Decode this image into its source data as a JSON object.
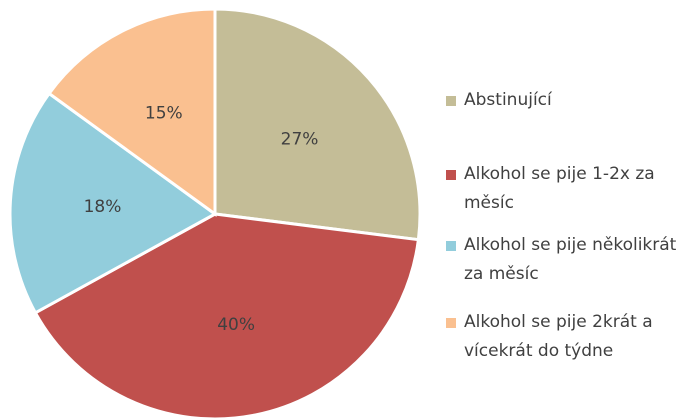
{
  "chart_data": {
    "type": "pie",
    "categories": [
      "Abstinující",
      "Alkohol se pije 1-2x za měsíc",
      "Alkohol se pije několikrát za měsíc",
      "Alkohol se pije 2krát a vícekrát do týdne"
    ],
    "values": [
      27,
      40,
      18,
      15
    ],
    "value_labels": [
      "27%",
      "40%",
      "18%",
      "15%"
    ],
    "colors": [
      "#c4bd97",
      "#c0504d",
      "#92cddc",
      "#fac090"
    ],
    "legend": "right"
  }
}
